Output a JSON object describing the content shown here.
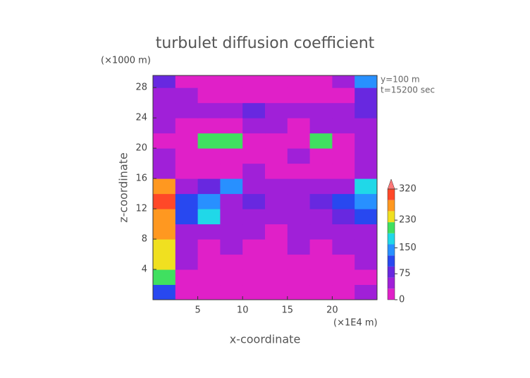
{
  "chart_data": {
    "type": "heatmap",
    "title": "turbulet diffusion coefficient",
    "y_unit": "(×1000 m)",
    "x_unit": "(×1E4 m)",
    "xlabel": "x-coordinate",
    "ylabel": "z-coordinate",
    "annotations": [
      "y=100 m",
      "t=15200 sec"
    ],
    "xlim": [
      0,
      25
    ],
    "xticks": [
      5,
      10,
      15,
      20
    ],
    "ylim": [
      0,
      29.6
    ],
    "yticks": [
      4,
      8,
      12,
      16,
      20,
      24,
      28
    ],
    "x": [
      1.25,
      3.75,
      6.25,
      8.75,
      11.25,
      13.75,
      16.25,
      18.75,
      21.25,
      23.75
    ],
    "z": [
      1,
      3,
      5,
      7,
      9,
      11,
      13,
      15,
      17,
      19,
      21,
      23,
      25,
      27,
      29
    ],
    "values": [
      [
        120,
        30,
        20,
        20,
        20,
        20,
        20,
        20,
        30,
        60
      ],
      [
        200,
        30,
        20,
        20,
        20,
        20,
        20,
        20,
        20,
        30
      ],
      [
        230,
        40,
        20,
        20,
        20,
        20,
        20,
        20,
        30,
        40
      ],
      [
        240,
        40,
        30,
        40,
        30,
        30,
        40,
        30,
        40,
        50
      ],
      [
        260,
        60,
        40,
        50,
        40,
        30,
        40,
        40,
        60,
        60
      ],
      [
        280,
        100,
        170,
        60,
        60,
        50,
        50,
        60,
        80,
        100
      ],
      [
        300,
        110,
        150,
        60,
        70,
        60,
        60,
        70,
        100,
        140
      ],
      [
        280,
        60,
        90,
        150,
        40,
        40,
        40,
        40,
        60,
        170
      ],
      [
        60,
        30,
        30,
        30,
        60,
        30,
        30,
        30,
        30,
        60
      ],
      [
        40,
        30,
        30,
        30,
        30,
        30,
        50,
        30,
        30,
        40
      ],
      [
        30,
        30,
        200,
        210,
        30,
        30,
        30,
        220,
        30,
        40
      ],
      [
        40,
        30,
        30,
        30,
        60,
        40,
        30,
        40,
        40,
        60
      ],
      [
        40,
        60,
        60,
        40,
        80,
        60,
        40,
        40,
        60,
        80
      ],
      [
        60,
        40,
        30,
        30,
        30,
        30,
        30,
        30,
        30,
        80
      ],
      [
        70,
        30,
        30,
        30,
        30,
        30,
        30,
        30,
        60,
        150
      ]
    ],
    "colorbar": {
      "lim": [
        0,
        320
      ],
      "ticks": [
        0,
        75,
        150,
        230,
        320
      ],
      "colors": [
        "#e020c8",
        "#a020d8",
        "#6828e0",
        "#2848f0",
        "#2890ff",
        "#20d8e8",
        "#40e060",
        "#f0e020",
        "#ff9820",
        "#ff4828"
      ],
      "extend_color": "#ff7878"
    }
  }
}
